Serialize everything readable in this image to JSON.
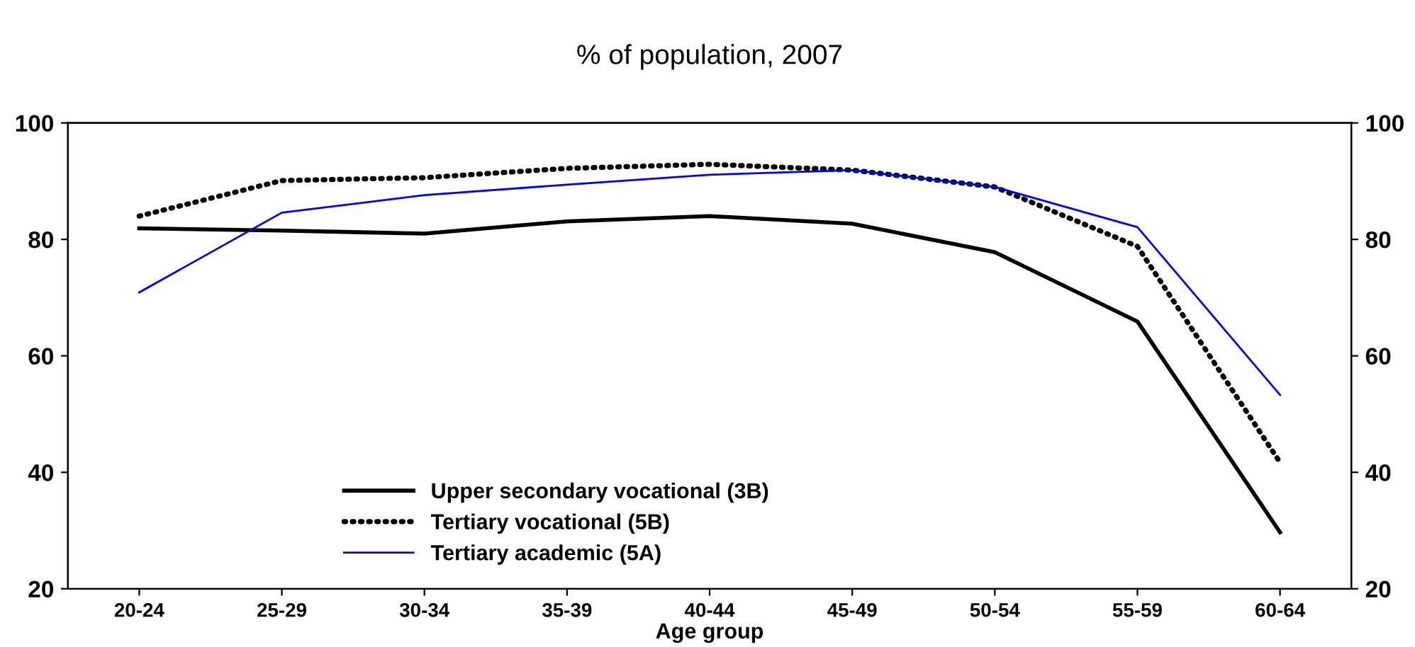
{
  "chart_data": {
    "type": "line",
    "title": "% of population, 2007",
    "xlabel": "Age group",
    "categories": [
      "20-24",
      "25-29",
      "30-34",
      "35-39",
      "40-44",
      "45-49",
      "50-54",
      "55-59",
      "60-64"
    ],
    "series": [
      {
        "name": "Upper secondary vocational (3B)",
        "color": "#000000",
        "line_style": "solid",
        "values": [
          81.9,
          81.5,
          81.0,
          83.1,
          84.0,
          82.7,
          77.8,
          65.9,
          29.7
        ]
      },
      {
        "name": "Tertiary vocational (5B)",
        "color": "#000000",
        "line_style": "dotted",
        "values": [
          84.0,
          90.1,
          90.6,
          92.2,
          92.9,
          91.9,
          89.0,
          78.8,
          41.7
        ]
      },
      {
        "name": "Tertiary academic (5A)",
        "color": "#0000ff",
        "line_style": "solid",
        "values": [
          70.9,
          84.6,
          87.6,
          89.4,
          91.1,
          91.9,
          89.0,
          82.1,
          53.3
        ]
      }
    ],
    "ylim": [
      20,
      100
    ],
    "yticks": [
      20,
      40,
      60,
      80,
      100
    ],
    "y2lim": [
      20,
      100
    ],
    "y2ticks": [
      20,
      40,
      60,
      80,
      100
    ],
    "grid": false,
    "legend": "bottom left",
    "marker": "none"
  }
}
